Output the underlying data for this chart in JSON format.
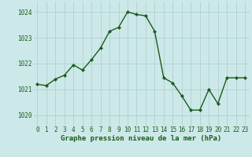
{
  "x": [
    0,
    1,
    2,
    3,
    4,
    5,
    6,
    7,
    8,
    9,
    10,
    11,
    12,
    13,
    14,
    15,
    16,
    17,
    18,
    19,
    20,
    21,
    22,
    23
  ],
  "y": [
    1021.2,
    1021.15,
    1021.4,
    1021.55,
    1021.95,
    1021.75,
    1022.15,
    1022.6,
    1023.25,
    1023.4,
    1024.0,
    1023.9,
    1023.85,
    1023.25,
    1021.45,
    1021.25,
    1020.75,
    1020.2,
    1020.2,
    1021.0,
    1020.45,
    1021.45,
    1021.45,
    1021.45
  ],
  "line_color": "#1a5c1a",
  "marker": "D",
  "markersize": 2.2,
  "linewidth": 1.0,
  "bg_color": "#cce8e8",
  "grid_color": "#aacccc",
  "xlabel": "Graphe pression niveau de la mer (hPa)",
  "xlabel_fontsize": 6.5,
  "xlabel_color": "#1a5c1a",
  "xlabel_bold": true,
  "yticks": [
    1020,
    1021,
    1022,
    1023,
    1024
  ],
  "xticks": [
    0,
    1,
    2,
    3,
    4,
    5,
    6,
    7,
    8,
    9,
    10,
    11,
    12,
    13,
    14,
    15,
    16,
    17,
    18,
    19,
    20,
    21,
    22,
    23
  ],
  "ylim": [
    1019.6,
    1024.4
  ],
  "xlim": [
    -0.5,
    23.5
  ],
  "tick_fontsize": 5.5,
  "tick_color": "#1a5c1a"
}
